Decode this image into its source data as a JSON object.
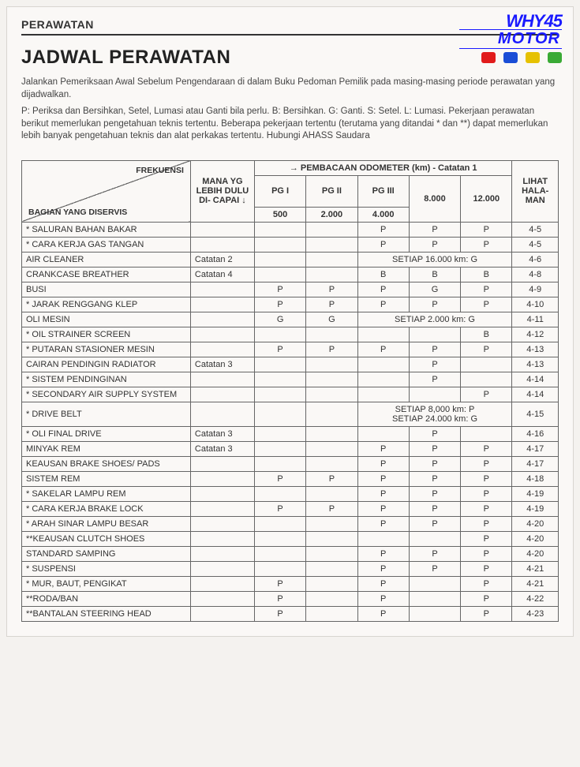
{
  "section": "PERAWATAN",
  "title": "JADWAL PERAWATAN",
  "intro1": "Jalankan Pemeriksaan Awal Sebelum Pengendaraan di dalam Buku Pedoman Pemilik pada masing-masing periode perawatan yang dijadwalkan.",
  "intro2": "P: Periksa dan Bersihkan, Setel, Lumasi atau Ganti bila perlu.  B: Bersihkan. G: Ganti. S: Setel. L: Lumasi. Pekerjaan perawatan berikut memerlukan pengetahuan teknis tertentu. Beberapa pekerjaan tertentu (terutama yang ditandai * dan **) dapat memerlukan lebih banyak pengetahuan teknis dan alat perkakas tertentu. Hubungi AHASS Saudara",
  "logo": {
    "line1": "WHY45",
    "line2": "MOTOR",
    "brand_colors": [
      "#e11b1b",
      "#1a4dd6",
      "#e6c100",
      "#3aaa35"
    ]
  },
  "headers": {
    "diag_top": "FREKUENSI",
    "diag_bot": "BAGIAN YANG DISERVIS",
    "mana": "MANA YG LEBIH DULU DI- CAPAI ↓",
    "odo": "→  PEMBACAAN ODOMETER  (km)  -  Catatan 1",
    "lihat": "LIHAT HALA- MAN",
    "pg": [
      "PG I",
      "PG II",
      "PG III"
    ],
    "km": [
      "500",
      "2.000",
      "4.000",
      "8.000",
      "12.000"
    ]
  },
  "rows": [
    {
      "name": "* SALURAN BAHAN BAKAR",
      "note": "",
      "c": [
        "",
        "",
        "P",
        "P",
        "P"
      ],
      "page": "4-5"
    },
    {
      "name": "* CARA KERJA GAS TANGAN",
      "note": "",
      "c": [
        "",
        "",
        "P",
        "P",
        "P"
      ],
      "page": "4-5"
    },
    {
      "name": "  AIR CLEANER",
      "note": "Catatan 2",
      "span": {
        "text": "SETIAP 16.000 km: G",
        "from": 2,
        "to": 4
      },
      "c": [
        "",
        ""
      ],
      "page": "4-6"
    },
    {
      "name": "  CRANKCASE BREATHER",
      "note": "Catatan 4",
      "c": [
        "",
        "",
        "B",
        "B",
        "B"
      ],
      "page": "4-8"
    },
    {
      "name": "  BUSI",
      "note": "",
      "c": [
        "P",
        "P",
        "P",
        "G",
        "P"
      ],
      "page": "4-9"
    },
    {
      "name": "* JARAK RENGGANG KLEP",
      "note": "",
      "c": [
        "P",
        "P",
        "P",
        "P",
        "P"
      ],
      "page": "4-10"
    },
    {
      "name": "  OLI MESIN",
      "note": "",
      "span": {
        "text": "SETIAP 2.000 km:  G",
        "from": 2,
        "to": 4
      },
      "c": [
        "G",
        "G"
      ],
      "page": "4-11"
    },
    {
      "name": "* OIL STRAINER SCREEN",
      "note": "",
      "c": [
        "",
        "",
        "",
        "",
        "B"
      ],
      "page": "4-12"
    },
    {
      "name": "* PUTARAN STASIONER MESIN",
      "note": "",
      "c": [
        "P",
        "P",
        "P",
        "P",
        "P"
      ],
      "page": "4-13"
    },
    {
      "name": "  CAIRAN PENDINGIN RADIATOR",
      "note": "Catatan 3",
      "c": [
        "",
        "",
        "",
        "P",
        ""
      ],
      "page": "4-13"
    },
    {
      "name": "* SISTEM PENDINGINAN",
      "note": "",
      "c": [
        "",
        "",
        "",
        "P",
        ""
      ],
      "page": "4-14"
    },
    {
      "name": "* SECONDARY AIR SUPPLY SYSTEM",
      "note": "",
      "c": [
        "",
        "",
        "",
        "",
        "P"
      ],
      "page": "4-14"
    },
    {
      "name": "* DRIVE BELT",
      "note": "",
      "span2": {
        "l1": "SETIAP 8,000 km: P",
        "l2": "SETIAP 24.000 km: G",
        "from": 2,
        "to": 4
      },
      "c": [
        "",
        ""
      ],
      "page": "4-15"
    },
    {
      "name": "* OLI FINAL DRIVE",
      "note": "Catatan 3",
      "c": [
        "",
        "",
        "",
        "P",
        ""
      ],
      "page": "4-16"
    },
    {
      "name": "  MINYAK REM",
      "note": "Catatan 3",
      "c": [
        "",
        "",
        "P",
        "P",
        "P"
      ],
      "page": "4-17"
    },
    {
      "name": "  KEAUSAN BRAKE SHOES/ PADS",
      "note": "",
      "c": [
        "",
        "",
        "P",
        "P",
        "P"
      ],
      "page": "4-17"
    },
    {
      "name": "  SISTEM REM",
      "note": "",
      "c": [
        "P",
        "P",
        "P",
        "P",
        "P"
      ],
      "page": "4-18"
    },
    {
      "name": "* SAKELAR LAMPU REM",
      "note": "",
      "c": [
        "",
        "",
        "P",
        "P",
        "P"
      ],
      "page": "4-19"
    },
    {
      "name": "* CARA KERJA BRAKE LOCK",
      "note": "",
      "c": [
        "P",
        "P",
        "P",
        "P",
        "P"
      ],
      "page": "4-19"
    },
    {
      "name": "* ARAH SINAR LAMPU BESAR",
      "note": "",
      "c": [
        "",
        "",
        "P",
        "P",
        "P"
      ],
      "page": "4-20"
    },
    {
      "name": "**KEAUSAN CLUTCH SHOES",
      "note": "",
      "c": [
        "",
        "",
        "",
        "",
        "P"
      ],
      "page": "4-20"
    },
    {
      "name": "  STANDARD SAMPING",
      "note": "",
      "c": [
        "",
        "",
        "P",
        "P",
        "P"
      ],
      "page": "4-20"
    },
    {
      "name": "* SUSPENSI",
      "note": "",
      "c": [
        "",
        "",
        "P",
        "P",
        "P"
      ],
      "page": "4-21"
    },
    {
      "name": "* MUR, BAUT, PENGIKAT",
      "note": "",
      "c": [
        "P",
        "",
        "P",
        "",
        "P"
      ],
      "page": "4-21"
    },
    {
      "name": "**RODA/BAN",
      "note": "",
      "c": [
        "P",
        "",
        "P",
        "",
        "P"
      ],
      "page": "4-22"
    },
    {
      "name": "**BANTALAN STEERING HEAD",
      "note": "",
      "c": [
        "P",
        "",
        "P",
        "",
        "P"
      ],
      "page": "4-23"
    }
  ],
  "colors": {
    "border": "#666",
    "bg": "#faf8f6",
    "text": "#333"
  }
}
